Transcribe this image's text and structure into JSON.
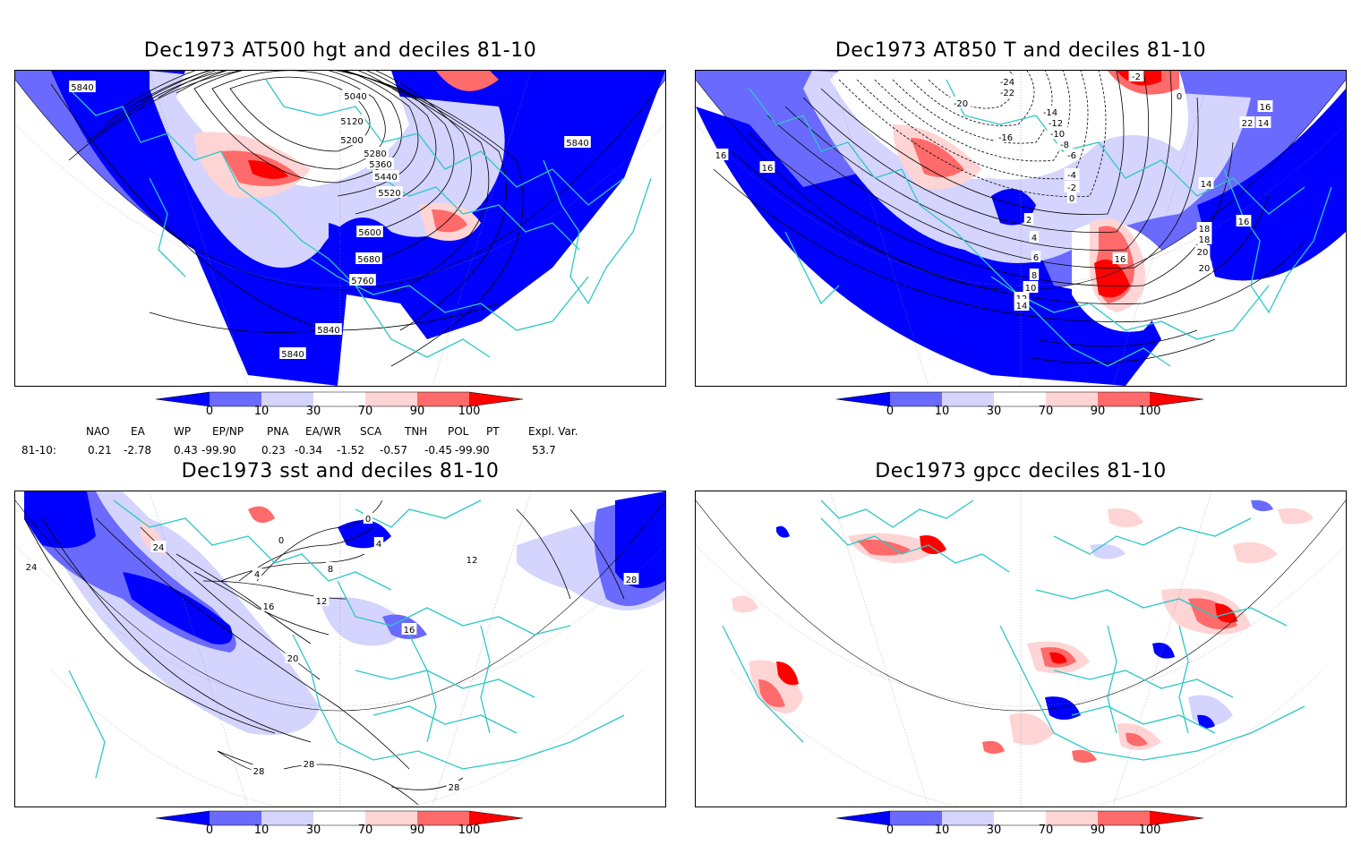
{
  "panels": [
    {
      "title": "Dec1973 AT500 hgt and deciles 81-10",
      "contour_labels": [
        "5840",
        "5040",
        "5120",
        "5200",
        "5280",
        "5360",
        "5440",
        "5520",
        "5600",
        "5680",
        "5760",
        "5840",
        "5840",
        "5840"
      ]
    },
    {
      "title": "Dec1973 AT850 T and deciles 81-10",
      "contour_labels": [
        "-24",
        "-22",
        "-20",
        "-16",
        "-14",
        "-12",
        "-10",
        "-8",
        "-6",
        "-4",
        "-2",
        "0",
        "2",
        "4",
        "6",
        "8",
        "10",
        "12",
        "14",
        "14",
        "16",
        "16",
        "16",
        "18",
        "18",
        "20",
        "20",
        "22",
        "-2",
        "0",
        "16",
        "14",
        "16"
      ]
    },
    {
      "title": "Dec1973 sst and deciles 81-10",
      "contour_labels": [
        "0",
        "4",
        "8",
        "12",
        "16",
        "20",
        "24",
        "24",
        "28",
        "28",
        "28",
        "28",
        "0",
        "4",
        "16",
        "12"
      ]
    },
    {
      "title": "Dec1973 gpcc deciles 81-10",
      "contour_labels": []
    }
  ],
  "colorbar": {
    "ticks": [
      "0",
      "10",
      "30",
      "70",
      "90",
      "100"
    ],
    "colors": [
      "#0000ff",
      "#6a6aff",
      "#d4d4ff",
      "#ffffff",
      "#ffd4d4",
      "#ff6a6a",
      "#ff0000"
    ]
  },
  "indices": {
    "headers": [
      "NAO",
      "EA",
      "WP",
      "EP/NP",
      "PNA",
      "EA/WR",
      "SCA",
      "TNH",
      "POL",
      "PT",
      "Expl. Var."
    ],
    "row_label": "81-10:",
    "values": [
      "0.21",
      "-2.78",
      "0.43",
      "-99.90",
      "0.23",
      "-0.34",
      "-1.52",
      "-0.57",
      "-0.45",
      "-99.90",
      "53.7"
    ]
  }
}
